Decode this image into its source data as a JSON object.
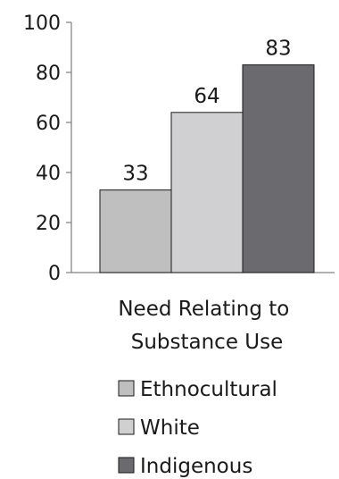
{
  "chart_data": {
    "type": "bar",
    "categories": [
      "Need Relating to Substance Use"
    ],
    "category_label_lines": [
      "Need Relating to",
      "Substance Use"
    ],
    "series": [
      {
        "name": "Ethnocultural",
        "values": [
          33
        ],
        "color": "#bfbfbf"
      },
      {
        "name": "White",
        "values": [
          64
        ],
        "color": "#d0d0d3"
      },
      {
        "name": "Indigenous",
        "values": [
          83
        ],
        "color": "#6b6b6f"
      }
    ],
    "data_labels": [
      "33",
      "64",
      "83"
    ],
    "y_ticks": [
      "0",
      "20",
      "40",
      "60",
      "80",
      "100"
    ],
    "ylim": [
      0,
      100
    ],
    "title": "",
    "xlabel": "",
    "ylabel": "",
    "legend": "bottom",
    "grid": false
  }
}
